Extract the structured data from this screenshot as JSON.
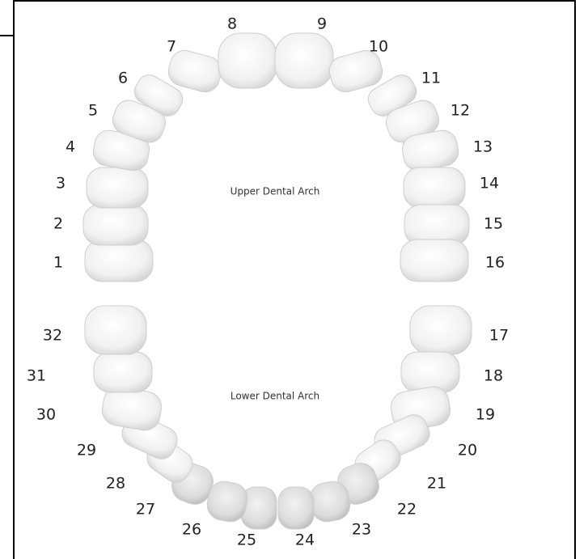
{
  "upper_arch_label": "Upper Dental Arch",
  "lower_arch_label": "Lower Dental Arch",
  "teeth": [
    "1",
    "2",
    "3",
    "4",
    "5",
    "6",
    "7",
    "8",
    "9",
    "10",
    "11",
    "12",
    "13",
    "14",
    "15",
    "16",
    "17",
    "18",
    "19",
    "20",
    "21",
    "22",
    "23",
    "24",
    "25",
    "26",
    "27",
    "28",
    "29",
    "30",
    "31",
    "32"
  ]
}
